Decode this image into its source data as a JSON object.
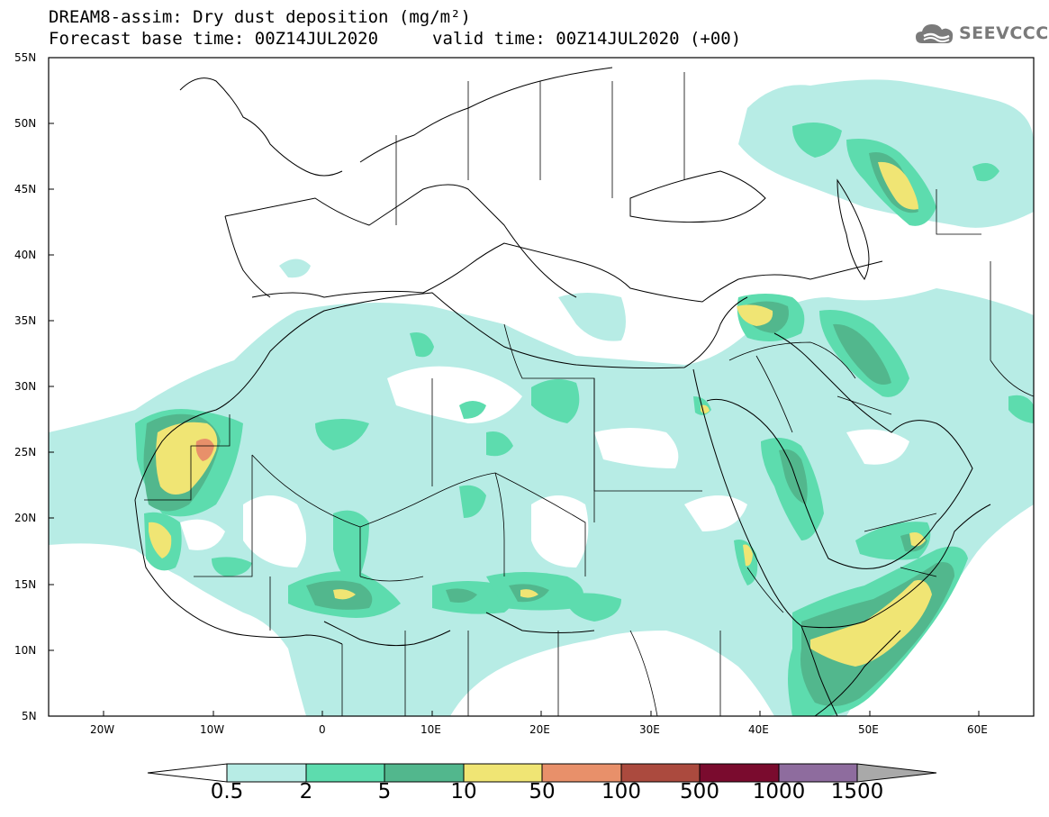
{
  "header": {
    "title_line1": "DREAM8-assim: Dry dust deposition (mg/m²)",
    "title_line2": "Forecast base time: 00Z14JUL2020",
    "valid_time": "valid time: 00Z14JUL2020 (+00)"
  },
  "logo": {
    "text": "SEEVCCC",
    "icon": "cloud-icon"
  },
  "map": {
    "projection": "lat-lon",
    "lon_range": [
      -25,
      65
    ],
    "lat_range": [
      5,
      55
    ],
    "lat_ticks": [
      "55N",
      "50N",
      "45N",
      "40N",
      "35N",
      "30N",
      "25N",
      "20N",
      "15N",
      "10N",
      "5N"
    ],
    "lon_ticks": [
      "20W",
      "10W",
      "0",
      "10E",
      "20E",
      "30E",
      "40E",
      "50E",
      "60E"
    ]
  },
  "legend": {
    "levels": [
      "0.5",
      "2",
      "5",
      "10",
      "50",
      "100",
      "500",
      "1000",
      "1500"
    ],
    "colors": [
      "#b7ece5",
      "#5ddcae",
      "#52b78d",
      "#f0e574",
      "#e8906a",
      "#ab4a3e",
      "#7a0b2e",
      "#8e6c9e"
    ],
    "under_color": "#ffffff",
    "over_color": "#a9a9a9"
  }
}
